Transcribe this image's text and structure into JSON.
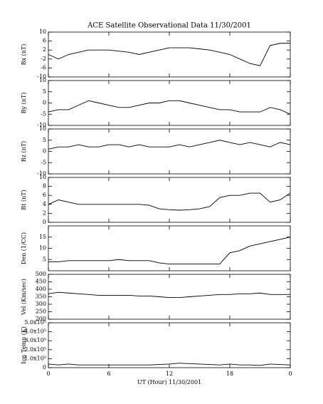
{
  "chart_data": [
    {
      "type": "line",
      "title": "ACE Satellite Observational Data   11/30/2001",
      "ylabel": "Bx (nT)",
      "x": [
        0,
        1,
        2,
        3,
        4,
        5,
        6,
        7,
        8,
        9,
        10,
        11,
        12,
        13,
        14,
        15,
        16,
        17,
        18,
        19,
        20,
        21,
        22,
        23,
        24
      ],
      "series": [
        {
          "name": "Bx",
          "color": "#000000",
          "values": [
            0,
            -2,
            0,
            1,
            2,
            2,
            2,
            1.5,
            1,
            0,
            1,
            2,
            3,
            3,
            3,
            2.5,
            2,
            1,
            0,
            -2,
            -4,
            -5,
            4,
            5,
            5
          ]
        }
      ],
      "xlim": [
        0,
        24
      ],
      "xticks": [
        0,
        6,
        12,
        18,
        24
      ],
      "ylim": [
        -10,
        10
      ],
      "yticks": [
        -10,
        -6,
        -2,
        2,
        6,
        10
      ]
    },
    {
      "type": "line",
      "ylabel": "By (nT)",
      "x": [
        0,
        1,
        2,
        3,
        4,
        5,
        6,
        7,
        8,
        9,
        10,
        11,
        12,
        13,
        14,
        15,
        16,
        17,
        18,
        19,
        20,
        21,
        22,
        23,
        24
      ],
      "series": [
        {
          "name": "By",
          "color": "#000000",
          "values": [
            -4,
            -3,
            -3,
            -1,
            1,
            0,
            -1,
            -2,
            -2,
            -1,
            0,
            0,
            1,
            1,
            0,
            -1,
            -2,
            -3,
            -3,
            -4,
            -4,
            -4,
            -2,
            -3,
            -5
          ]
        }
      ],
      "xlim": [
        0,
        24
      ],
      "xticks": [
        0,
        6,
        12,
        18,
        24
      ],
      "ylim": [
        -10,
        10
      ],
      "yticks": [
        -10,
        -5,
        0,
        5,
        10
      ]
    },
    {
      "type": "line",
      "ylabel": "Bz (nT)",
      "x": [
        0,
        1,
        2,
        3,
        4,
        5,
        6,
        7,
        8,
        9,
        10,
        11,
        12,
        13,
        14,
        15,
        16,
        17,
        18,
        19,
        20,
        21,
        22,
        23,
        24
      ],
      "series": [
        {
          "name": "Bz",
          "color": "#000000",
          "values": [
            1,
            2,
            2,
            3,
            2,
            2,
            3,
            3,
            2,
            3,
            2,
            2,
            2,
            3,
            2,
            3,
            4,
            5,
            4,
            3,
            4,
            3,
            2,
            4,
            3
          ]
        }
      ],
      "xlim": [
        0,
        24
      ],
      "xticks": [
        0,
        6,
        12,
        18,
        24
      ],
      "ylim": [
        -10,
        10
      ],
      "yticks": [
        -10,
        -5,
        0,
        5,
        10
      ]
    },
    {
      "type": "line",
      "ylabel": "Bt (nT)",
      "x": [
        0,
        1,
        2,
        3,
        4,
        5,
        6,
        7,
        8,
        9,
        10,
        11,
        12,
        13,
        14,
        15,
        16,
        17,
        18,
        19,
        20,
        21,
        22,
        23,
        24
      ],
      "series": [
        {
          "name": "Bt",
          "color": "#000000",
          "values": [
            4,
            5,
            4.5,
            4,
            4,
            4,
            4,
            4,
            4,
            4,
            3.8,
            3,
            2.8,
            2.7,
            2.8,
            3,
            3.5,
            5.5,
            6,
            6,
            6.5,
            6.5,
            4.5,
            5,
            6.5
          ]
        }
      ],
      "xlim": [
        0,
        24
      ],
      "xticks": [
        0,
        6,
        12,
        18,
        24
      ],
      "ylim": [
        0,
        10
      ],
      "yticks": [
        0,
        2,
        4,
        6,
        8,
        10
      ]
    },
    {
      "type": "line",
      "ylabel": "Den (1/CC)",
      "x": [
        0,
        1,
        2,
        3,
        4,
        5,
        6,
        7,
        8,
        9,
        10,
        11,
        12,
        13,
        14,
        15,
        16,
        17,
        18,
        19,
        20,
        21,
        22,
        23,
        24
      ],
      "series": [
        {
          "name": "Den",
          "color": "#000000",
          "values": [
            4,
            4,
            4.5,
            4.5,
            4.5,
            4.5,
            4.5,
            5,
            4.5,
            4.5,
            4.5,
            3.5,
            3,
            3,
            3,
            3,
            3,
            3,
            8,
            9,
            11,
            12,
            13,
            14,
            15
          ]
        }
      ],
      "xlim": [
        0,
        24
      ],
      "xticks": [
        0,
        6,
        12,
        18,
        24
      ],
      "ylim": [
        0,
        20
      ],
      "yticks": [
        5,
        10,
        15
      ]
    },
    {
      "type": "line",
      "ylabel": "Vel (Km/sec)",
      "x": [
        0,
        1,
        2,
        3,
        4,
        5,
        6,
        7,
        8,
        9,
        10,
        11,
        12,
        13,
        14,
        15,
        16,
        17,
        18,
        19,
        20,
        21,
        22,
        23,
        24
      ],
      "series": [
        {
          "name": "Vel",
          "color": "#000000",
          "values": [
            370,
            380,
            375,
            370,
            365,
            360,
            360,
            360,
            360,
            355,
            355,
            350,
            345,
            345,
            350,
            355,
            360,
            365,
            365,
            370,
            370,
            375,
            365,
            365,
            365
          ]
        }
      ],
      "xlim": [
        0,
        24
      ],
      "xticks": [
        0,
        6,
        12,
        18,
        24
      ],
      "ylim": [
        200,
        500
      ],
      "yticks": [
        200,
        250,
        300,
        350,
        400,
        450,
        500
      ]
    },
    {
      "type": "line",
      "ylabel": "Ion Temp (K)",
      "xlabel": "UT (Hour)   11/30/2001",
      "x": [
        0,
        1,
        2,
        3,
        4,
        5,
        6,
        7,
        8,
        9,
        10,
        11,
        12,
        13,
        14,
        15,
        16,
        17,
        18,
        19,
        20,
        21,
        22,
        23,
        24
      ],
      "series": [
        {
          "name": "Ion Temp",
          "color": "#000000",
          "values": [
            40000,
            30000,
            40000,
            30000,
            30000,
            30000,
            30000,
            30000,
            30000,
            30000,
            30000,
            35000,
            40000,
            50000,
            45000,
            40000,
            35000,
            30000,
            40000,
            30000,
            30000,
            25000,
            40000,
            35000,
            30000
          ]
        }
      ],
      "xlim": [
        0,
        24
      ],
      "xticks": [
        0,
        6,
        12,
        18,
        {
          "value": 24,
          "label": "0"
        }
      ],
      "ylim": [
        0,
        500000
      ],
      "yticks": [
        0,
        {
          "value": 100000,
          "label": "1.0x10⁵"
        },
        {
          "value": 200000,
          "label": "2.0x10⁵"
        },
        {
          "value": 300000,
          "label": "3.0x10⁵"
        },
        {
          "value": 400000,
          "label": "4.0x10⁵"
        },
        {
          "value": 500000,
          "label": "5.0x10⁵"
        }
      ]
    }
  ]
}
